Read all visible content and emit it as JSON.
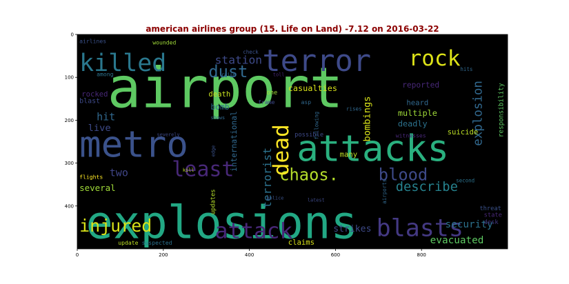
{
  "chart_data": {
    "type": "wordcloud",
    "title": "american airlines group (15. Life on Land) -7.12 on 2016-03-22",
    "xlim": [
      0,
      1000
    ],
    "ylim": [
      0,
      500
    ],
    "x_ticks": [
      0,
      200,
      400,
      600,
      800
    ],
    "y_ticks": [
      0,
      100,
      200,
      300,
      400
    ],
    "background": "#000000",
    "words": [
      {
        "text": "airport",
        "x": 70,
        "y": 170,
        "size": 130,
        "color": "#5ec962"
      },
      {
        "text": "explosions",
        "x": 20,
        "y": 475,
        "size": 105,
        "color": "#22a884"
      },
      {
        "text": "attacks",
        "x": 510,
        "y": 295,
        "size": 84,
        "color": "#2ab07f"
      },
      {
        "text": "metro",
        "x": 5,
        "y": 285,
        "size": 84,
        "color": "#3b528b"
      },
      {
        "text": "terror",
        "x": 430,
        "y": 85,
        "size": 70,
        "color": "#3e4a89"
      },
      {
        "text": "killed",
        "x": 5,
        "y": 85,
        "size": 56,
        "color": "#2a788e"
      },
      {
        "text": "rock",
        "x": 770,
        "y": 72,
        "size": 50,
        "color": "#dde318"
      },
      {
        "text": "least",
        "x": 220,
        "y": 330,
        "size": 48,
        "color": "#482878"
      },
      {
        "text": "dust",
        "x": 305,
        "y": 100,
        "size": 38,
        "color": "#31688e"
      },
      {
        "text": "chaos.",
        "x": 470,
        "y": 340,
        "size": 38,
        "color": "#b5de2b"
      },
      {
        "text": "blood",
        "x": 700,
        "y": 340,
        "size": 38,
        "color": "#3e4a89"
      },
      {
        "text": "blasts",
        "x": 695,
        "y": 470,
        "size": 56,
        "color": "#443983"
      },
      {
        "text": "attack",
        "x": 320,
        "y": 475,
        "size": 50,
        "color": "#482878"
      },
      {
        "text": "injured",
        "x": 5,
        "y": 460,
        "size": 40,
        "color": "#d8e219"
      },
      {
        "text": "describe",
        "x": 740,
        "y": 365,
        "size": 30,
        "color": "#26828e"
      },
      {
        "text": "station",
        "x": 320,
        "y": 68,
        "size": 26,
        "color": "#3e4a89"
      },
      {
        "text": "explosion",
        "x": 940,
        "y": 260,
        "size": 28,
        "color": "#31688e",
        "rotate": -90
      },
      {
        "text": "dead",
        "x": 490,
        "y": 330,
        "size": 50,
        "color": "#fde725",
        "rotate": -90
      },
      {
        "text": "terrorist",
        "x": 450,
        "y": 405,
        "size": 26,
        "color": "#2c728e",
        "rotate": -90
      },
      {
        "text": "bombings",
        "x": 680,
        "y": 250,
        "size": 22,
        "color": "#d8e219",
        "rotate": -90
      },
      {
        "text": "international",
        "x": 370,
        "y": 320,
        "size": 18,
        "color": "#31688e",
        "rotate": -90
      },
      {
        "text": "responsibility",
        "x": 990,
        "y": 240,
        "size": 15,
        "color": "#5ec962",
        "rotate": -90
      },
      {
        "text": "updates",
        "x": 320,
        "y": 420,
        "size": 14,
        "color": "#b5de2b",
        "rotate": -90
      },
      {
        "text": "airports",
        "x": 718,
        "y": 395,
        "size": 12,
        "color": "#31688e",
        "rotate": -90
      },
      {
        "text": "following",
        "x": 560,
        "y": 245,
        "size": 12,
        "color": "#31688e",
        "rotate": -90
      },
      {
        "text": "edge",
        "x": 320,
        "y": 285,
        "size": 11,
        "color": "#3b528b",
        "rotate": -90
      },
      {
        "text": "casualties",
        "x": 490,
        "y": 132,
        "size": 19,
        "color": "#d8e219"
      },
      {
        "text": "reported",
        "x": 755,
        "y": 124,
        "size": 18,
        "color": "#482878"
      },
      {
        "text": "security",
        "x": 855,
        "y": 450,
        "size": 23,
        "color": "#2c728e"
      },
      {
        "text": "evacuated",
        "x": 820,
        "y": 487,
        "size": 23,
        "color": "#5ec962"
      },
      {
        "text": "strikes",
        "x": 595,
        "y": 460,
        "size": 21,
        "color": "#3e4a89"
      },
      {
        "text": "claims",
        "x": 490,
        "y": 490,
        "size": 17,
        "color": "#d8e219"
      },
      {
        "text": "multiple",
        "x": 745,
        "y": 190,
        "size": 19,
        "color": "#a0da39"
      },
      {
        "text": "heard",
        "x": 765,
        "y": 165,
        "size": 17,
        "color": "#31688e"
      },
      {
        "text": "deadly",
        "x": 745,
        "y": 215,
        "size": 19,
        "color": "#2c728e"
      },
      {
        "text": "suicide",
        "x": 860,
        "y": 233,
        "size": 17,
        "color": "#bddf26"
      },
      {
        "text": "hit",
        "x": 45,
        "y": 200,
        "size": 24,
        "color": "#31688e"
      },
      {
        "text": "live",
        "x": 25,
        "y": 225,
        "size": 22,
        "color": "#3e4a89"
      },
      {
        "text": "two",
        "x": 75,
        "y": 330,
        "size": 24,
        "color": "#404688"
      },
      {
        "text": "several",
        "x": 5,
        "y": 365,
        "size": 20,
        "color": "#a0da39"
      },
      {
        "text": "flights",
        "x": 5,
        "y": 337,
        "size": 13,
        "color": "#fde725"
      },
      {
        "text": "blast",
        "x": 5,
        "y": 160,
        "size": 16,
        "color": "#3e4a89"
      },
      {
        "text": "rocked",
        "x": 10,
        "y": 145,
        "size": 17,
        "color": "#482878"
      },
      {
        "text": "among",
        "x": 45,
        "y": 97,
        "size": 13,
        "color": "#2c728e"
      },
      {
        "text": "airlines",
        "x": 5,
        "y": 20,
        "size": 13,
        "color": "#3b528b"
      },
      {
        "text": "wounded",
        "x": 175,
        "y": 23,
        "size": 13,
        "color": "#a0da39"
      },
      {
        "text": "check",
        "x": 385,
        "y": 45,
        "size": 12,
        "color": "#3b528b"
      },
      {
        "text": "raise",
        "x": 335,
        "y": 97,
        "size": 11,
        "color": "#31688e"
      },
      {
        "text": "toll",
        "x": 455,
        "y": 97,
        "size": 11,
        "color": "#482878"
      },
      {
        "text": "one",
        "x": 440,
        "y": 140,
        "size": 14,
        "color": "#a0da39"
      },
      {
        "text": "frame",
        "x": 420,
        "y": 162,
        "size": 13,
        "color": "#3e4a89"
      },
      {
        "text": "asp",
        "x": 520,
        "y": 162,
        "size": 13,
        "color": "#31688e"
      },
      {
        "text": "death",
        "x": 305,
        "y": 145,
        "size": 17,
        "color": "#c8e020"
      },
      {
        "text": "bomb",
        "x": 310,
        "y": 175,
        "size": 18,
        "color": "#2c728e"
      },
      {
        "text": "shows",
        "x": 310,
        "y": 198,
        "size": 11,
        "color": "#31688e"
      },
      {
        "text": "rises",
        "x": 625,
        "y": 178,
        "size": 12,
        "color": "#31688e"
      },
      {
        "text": "possible",
        "x": 505,
        "y": 238,
        "size": 14,
        "color": "#3e4a89"
      },
      {
        "text": "witnesses",
        "x": 740,
        "y": 240,
        "size": 13,
        "color": "#482878"
      },
      {
        "text": "severely",
        "x": 185,
        "y": 237,
        "size": 11,
        "color": "#3e4a89"
      },
      {
        "text": "kill",
        "x": 245,
        "y": 320,
        "size": 11,
        "color": "#bddf26"
      },
      {
        "text": "many",
        "x": 610,
        "y": 285,
        "size": 17,
        "color": "#bddf26"
      },
      {
        "text": "second",
        "x": 880,
        "y": 345,
        "size": 12,
        "color": "#2c728e"
      },
      {
        "text": "police",
        "x": 440,
        "y": 385,
        "size": 11,
        "color": "#3b528b"
      },
      {
        "text": "latest",
        "x": 535,
        "y": 390,
        "size": 11,
        "color": "#3e4a89"
      },
      {
        "text": "threat",
        "x": 935,
        "y": 410,
        "size": 14,
        "color": "#3b528b"
      },
      {
        "text": "state",
        "x": 945,
        "y": 425,
        "size": 14,
        "color": "#482878"
      },
      {
        "text": "desk",
        "x": 945,
        "y": 442,
        "size": 14,
        "color": "#443983"
      },
      {
        "text": "suspected",
        "x": 150,
        "y": 490,
        "size": 13,
        "color": "#2c728e"
      },
      {
        "text": "update",
        "x": 95,
        "y": 490,
        "size": 13,
        "color": "#bddf26"
      },
      {
        "text": "hits",
        "x": 890,
        "y": 85,
        "size": 12,
        "color": "#31688e"
      }
    ]
  }
}
